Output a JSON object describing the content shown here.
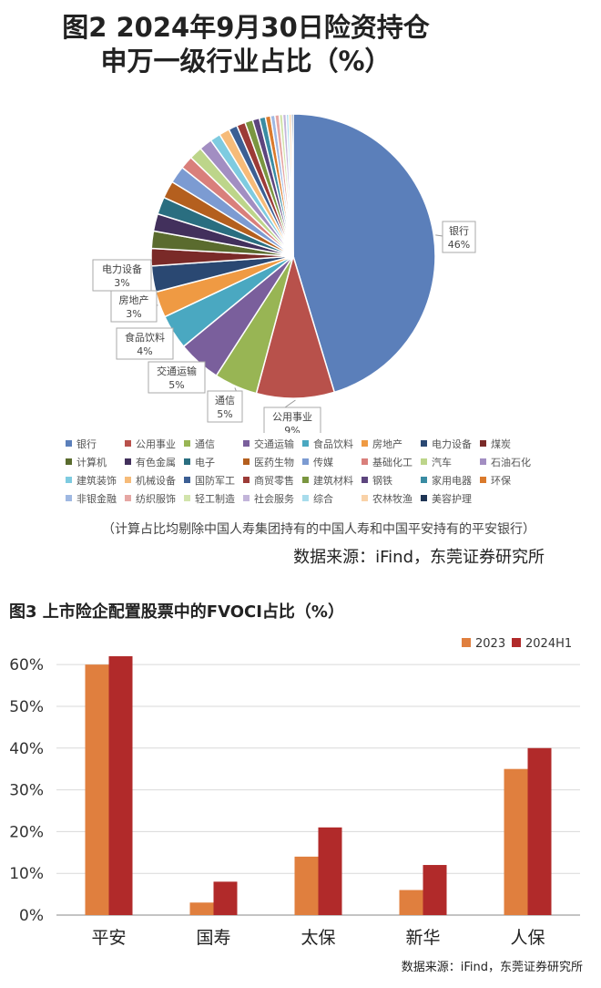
{
  "chart_data": [
    {
      "type": "pie",
      "title_line1": "图2  2024年9月30日险资持仓",
      "title_line2": "申万一级行业占比（%）",
      "slices": [
        {
          "label": "银行",
          "value": 46,
          "color": "#5b7fba",
          "label_text": "46%"
        },
        {
          "label": "公用事业",
          "value": 9,
          "color": "#b8514b",
          "label_text": "9%"
        },
        {
          "label": "通信",
          "value": 5,
          "color": "#98b554",
          "label_text": "5%"
        },
        {
          "label": "交通运输",
          "value": 5,
          "color": "#7a5f9c",
          "label_text": "5%"
        },
        {
          "label": "食品饮料",
          "value": 4,
          "color": "#4aa8c1",
          "label_text": "4%"
        },
        {
          "label": "房地产",
          "value": 3,
          "color": "#ef9a43",
          "label_text": "3%"
        },
        {
          "label": "电力设备",
          "value": 3,
          "color": "#2a4872",
          "label_text": "3%"
        },
        {
          "label": "煤炭",
          "value": 2,
          "color": "#7a2a28",
          "label_text": ""
        },
        {
          "label": "计算机",
          "value": 2,
          "color": "#5a6b2e",
          "label_text": ""
        },
        {
          "label": "有色金属",
          "value": 2,
          "color": "#42305c",
          "label_text": ""
        },
        {
          "label": "电子",
          "value": 2,
          "color": "#2a6e80",
          "label_text": ""
        },
        {
          "label": "医药生物",
          "value": 2,
          "color": "#b45f1e",
          "label_text": ""
        },
        {
          "label": "传媒",
          "value": 2,
          "color": "#7c9bd2",
          "label_text": ""
        },
        {
          "label": "基础化工",
          "value": 1.5,
          "color": "#d97f7b",
          "label_text": ""
        },
        {
          "label": "汽车",
          "value": 1.5,
          "color": "#bdd58a",
          "label_text": ""
        },
        {
          "label": "石油石化",
          "value": 1.5,
          "color": "#a28ec2",
          "label_text": ""
        },
        {
          "label": "建筑装饰",
          "value": 1.2,
          "color": "#7ecbe0",
          "label_text": ""
        },
        {
          "label": "机械设备",
          "value": 1.2,
          "color": "#f6bb79",
          "label_text": ""
        },
        {
          "label": "国防军工",
          "value": 1,
          "color": "#3c5f94",
          "label_text": ""
        },
        {
          "label": "商贸零售",
          "value": 1,
          "color": "#9c3b37",
          "label_text": ""
        },
        {
          "label": "建筑材料",
          "value": 0.9,
          "color": "#7a9640",
          "label_text": ""
        },
        {
          "label": "钢铁",
          "value": 0.8,
          "color": "#5d457e",
          "label_text": ""
        },
        {
          "label": "家用电器",
          "value": 0.7,
          "color": "#3a8ca3",
          "label_text": ""
        },
        {
          "label": "环保",
          "value": 0.6,
          "color": "#da7a2c",
          "label_text": ""
        },
        {
          "label": "非银金融",
          "value": 0.5,
          "color": "#9fb8e2",
          "label_text": ""
        },
        {
          "label": "纺织服饰",
          "value": 0.5,
          "color": "#e6a7a4",
          "label_text": ""
        },
        {
          "label": "轻工制造",
          "value": 0.4,
          "color": "#d2e4ac",
          "label_text": ""
        },
        {
          "label": "社会服务",
          "value": 0.4,
          "color": "#c3b5da",
          "label_text": ""
        },
        {
          "label": "综合",
          "value": 0.3,
          "color": "#a8dcec",
          "label_text": ""
        },
        {
          "label": "农林牧渔",
          "value": 0.3,
          "color": "#f9d2a8",
          "label_text": ""
        },
        {
          "label": "美容护理",
          "value": 0.2,
          "color": "#1f3555",
          "label_text": ""
        }
      ],
      "note": "（计算占比均剔除中国人寿集团持有的中国人寿和中国平安持有的平安银行）",
      "source": "数据来源：iFind，东莞证券研究所"
    },
    {
      "type": "bar",
      "title": "图3  上市险企配置股票中的FVOCI占比（%）",
      "categories": [
        "平安",
        "国寿",
        "太保",
        "新华",
        "人保"
      ],
      "series": [
        {
          "name": "2023",
          "color": "#e07f3e",
          "values": [
            60,
            3,
            14,
            6,
            35
          ]
        },
        {
          "name": "2024H1",
          "color": "#b12a2a",
          "values": [
            62,
            8,
            21,
            12,
            40
          ]
        }
      ],
      "ylim": [
        0,
        60
      ],
      "yticks": [
        0,
        10,
        20,
        30,
        40,
        50,
        60
      ],
      "tick_labels": [
        "0%",
        "10%",
        "20%",
        "30%",
        "40%",
        "50%",
        "60%"
      ],
      "grid": true,
      "legend": "top-right",
      "source": "数据来源：iFind，东莞证券研究所"
    }
  ]
}
